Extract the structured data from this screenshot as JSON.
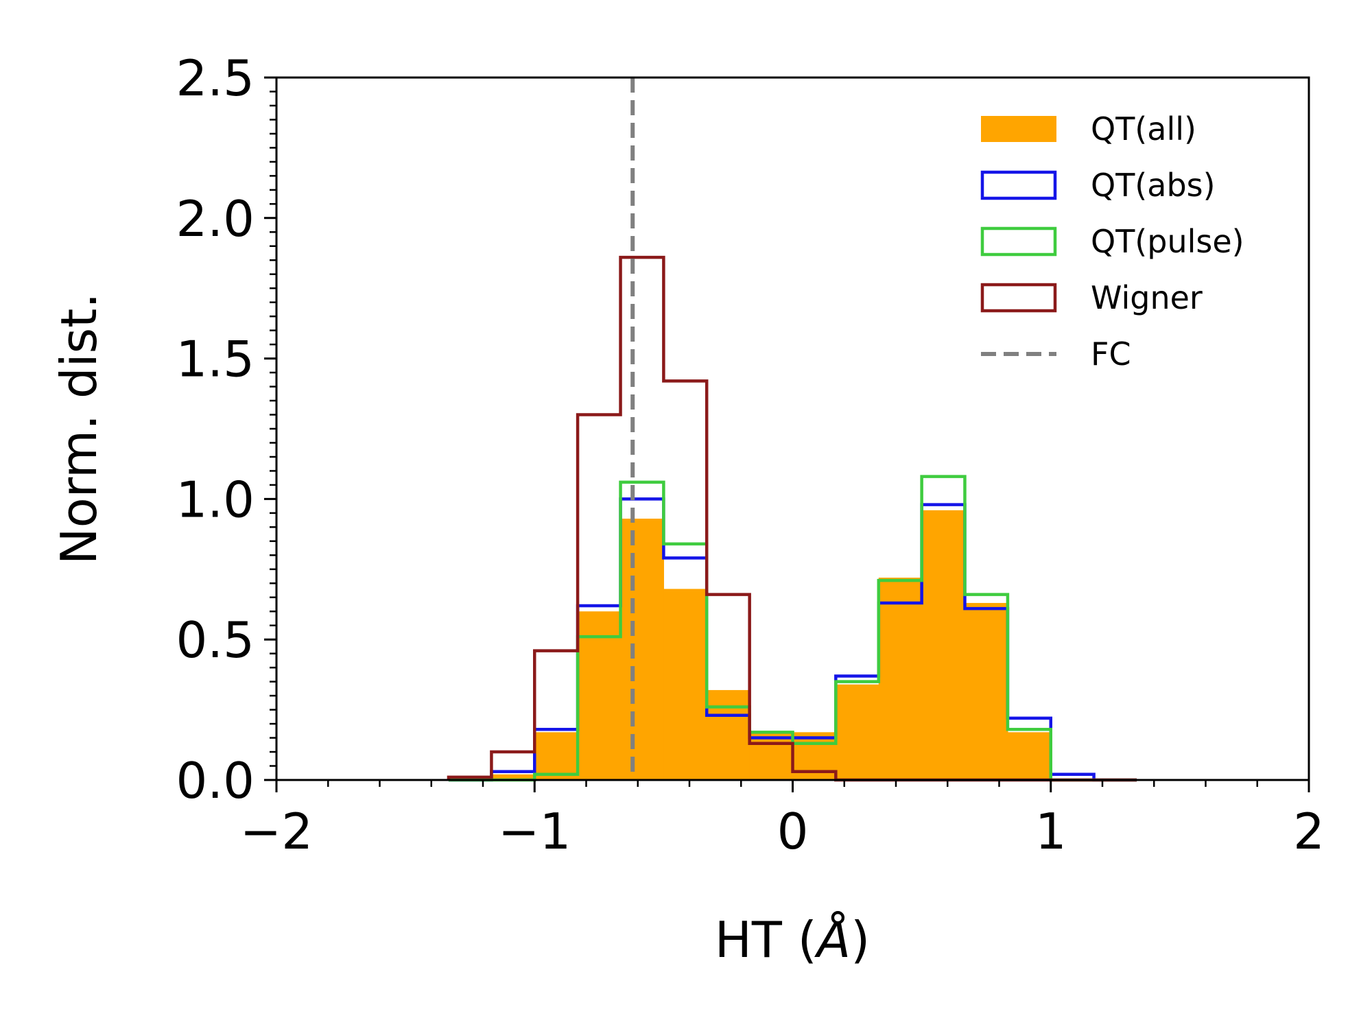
{
  "chart_data": {
    "type": "histogram",
    "xlabel_text": "HT (",
    "xlabel_unit": "Å",
    "xlabel_close": ")",
    "ylabel": "Norm. dist.",
    "xlim": [
      -2,
      2
    ],
    "ylim": [
      0,
      2.5
    ],
    "x_ticks": [
      -2,
      -1,
      0,
      1,
      2
    ],
    "x_tick_labels": [
      "−2",
      "−1",
      "0",
      "1",
      "2"
    ],
    "y_ticks": [
      0,
      0.5,
      1,
      1.5,
      2,
      2.5
    ],
    "y_tick_labels": [
      "0.0",
      "0.5",
      "1.0",
      "1.5",
      "2.0",
      "2.5"
    ],
    "grid": false,
    "legend_position": "top-right",
    "bin_edges": [
      -1.333,
      -1.167,
      -1.0,
      -0.833,
      -0.667,
      -0.5,
      -0.333,
      -0.167,
      0.0,
      0.167,
      0.333,
      0.5,
      0.667,
      0.833,
      1.0,
      1.167,
      1.333
    ],
    "series": [
      {
        "name": "QT(all)",
        "style": "filled",
        "color": "#ffa500",
        "values": [
          0.0,
          0.02,
          0.17,
          0.6,
          0.93,
          0.68,
          0.32,
          0.17,
          0.17,
          0.34,
          0.72,
          0.96,
          0.63,
          0.17,
          0.0,
          0.0
        ]
      },
      {
        "name": "QT(abs)",
        "style": "step",
        "color": "#1515e8",
        "values": [
          0.0,
          0.03,
          0.18,
          0.62,
          1.0,
          0.79,
          0.23,
          0.15,
          0.15,
          0.37,
          0.63,
          0.98,
          0.61,
          0.22,
          0.02,
          0.0
        ]
      },
      {
        "name": "QT(pulse)",
        "style": "step",
        "color": "#3fcc3f",
        "values": [
          0.0,
          0.0,
          0.02,
          0.51,
          1.06,
          0.84,
          0.26,
          0.17,
          0.13,
          0.35,
          0.71,
          1.08,
          0.66,
          0.18,
          0.0,
          0.0
        ]
      },
      {
        "name": "Wigner",
        "style": "step",
        "color": "#8b1a1a",
        "values": [
          0.01,
          0.1,
          0.46,
          1.3,
          1.86,
          1.42,
          0.66,
          0.13,
          0.03,
          0.0,
          0.0,
          0.0,
          0.0,
          0.0,
          0.0,
          0.0
        ]
      }
    ],
    "vline": {
      "name": "FC",
      "x": -0.62,
      "color": "#808080",
      "style": "dashed"
    }
  }
}
